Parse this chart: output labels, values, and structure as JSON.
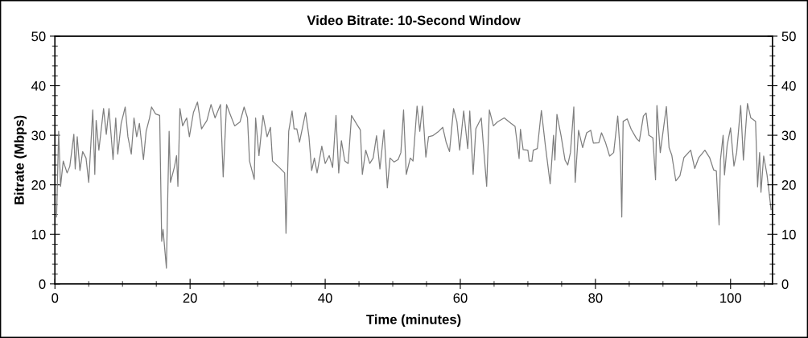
{
  "chart_data": {
    "type": "line",
    "title": "Video Bitrate: 10-Second Window",
    "xlabel": "Time (minutes)",
    "ylabel": "Bitrate (Mbps)",
    "xlim": [
      0,
      106.2
    ],
    "xticks": [
      0,
      20,
      40,
      60,
      80,
      100
    ],
    "ylim": [
      0,
      50
    ],
    "yticks": [
      0,
      10,
      20,
      30,
      40,
      50
    ],
    "y2lim": [
      0,
      50
    ],
    "y2ticks": [
      0,
      10,
      20,
      30,
      40,
      50
    ],
    "grid": false,
    "marker": "none",
    "line_style": "solid",
    "series": [
      {
        "color": "#7f7f7f",
        "x": [
          0.24,
          0.55,
          0.83,
          1.23,
          1.8,
          2.2,
          2.8,
          3.0,
          3.3,
          3.7,
          4.1,
          4.6,
          5.0,
          5.6,
          5.9,
          6.1,
          6.5,
          7.2,
          7.6,
          8.0,
          8.6,
          9.0,
          9.3,
          9.8,
          10.4,
          10.8,
          11.3,
          11.7,
          12.1,
          12.5,
          13.1,
          13.5,
          14.0,
          14.3,
          14.9,
          15.5,
          15.8,
          16.0,
          16.5,
          16.7,
          16.9,
          17.1,
          17.7,
          18.0,
          18.2,
          18.5,
          18.9,
          19.5,
          19.9,
          20.5,
          21.1,
          21.7,
          22.5,
          23.1,
          23.7,
          24.5,
          24.9,
          25.4,
          26.0,
          26.6,
          27.4,
          28.0,
          28.5,
          28.8,
          29.5,
          29.7,
          30.2,
          30.8,
          31.4,
          31.9,
          32.2,
          33.2,
          34.0,
          34.2,
          34.6,
          35.1,
          35.4,
          35.8,
          36.2,
          37.1,
          37.6,
          38.0,
          38.4,
          38.8,
          39.5,
          40.0,
          40.6,
          41.1,
          41.6,
          42.0,
          42.4,
          42.9,
          43.4,
          43.9,
          44.6,
          45.2,
          45.5,
          46.0,
          46.6,
          47.1,
          47.6,
          48.1,
          48.7,
          49.2,
          49.6,
          50.2,
          50.8,
          51.2,
          51.6,
          52.0,
          52.6,
          53.0,
          53.6,
          54.0,
          54.4,
          54.9,
          55.3,
          55.9,
          56.8,
          57.4,
          57.9,
          58.4,
          59.0,
          59.5,
          59.9,
          60.5,
          61.1,
          61.4,
          61.9,
          62.3,
          63.1,
          63.5,
          63.9,
          64.3,
          64.9,
          65.5,
          66.5,
          67.5,
          68.1,
          68.7,
          68.9,
          69.3,
          70.0,
          70.2,
          70.6,
          70.8,
          71.4,
          72.0,
          72.6,
          73.3,
          73.8,
          74.0,
          74.3,
          74.9,
          75.5,
          75.9,
          76.3,
          76.8,
          77.0,
          77.5,
          78.1,
          78.7,
          79.3,
          79.7,
          80.5,
          80.9,
          81.5,
          82.1,
          82.7,
          83.3,
          83.7,
          83.9,
          84.1,
          84.7,
          85.3,
          86.1,
          86.5,
          87.1,
          87.5,
          87.9,
          88.5,
          88.9,
          89.1,
          89.6,
          90.5,
          90.9,
          91.3,
          91.9,
          92.5,
          93.1,
          94.1,
          94.7,
          95.3,
          96.2,
          96.9,
          97.5,
          97.9,
          98.3,
          98.5,
          98.9,
          99.1,
          99.5,
          100.0,
          100.5,
          100.9,
          101.5,
          101.9,
          102.5,
          103.0,
          103.7,
          104.0,
          104.3,
          104.5,
          104.9,
          105.4,
          106.0
        ],
        "values": [
          13.5,
          30.8,
          19.7,
          24.8,
          22.4,
          23.7,
          30.2,
          23.2,
          29.7,
          22.9,
          26.7,
          25.4,
          20.5,
          35.1,
          22.1,
          33,
          27,
          35.4,
          30.2,
          35.4,
          25.1,
          33.5,
          26.2,
          32.4,
          35.7,
          29.7,
          26.2,
          33.5,
          29.7,
          32.4,
          25.1,
          30.8,
          33.5,
          35.7,
          34.3,
          34,
          8.6,
          11,
          3.2,
          17.8,
          30.8,
          20.5,
          23.7,
          25.9,
          19.7,
          35.4,
          31.9,
          33.5,
          29.7,
          34.6,
          36.7,
          31.3,
          33,
          36.2,
          33.5,
          36.2,
          21.6,
          36.2,
          34,
          31.9,
          32.7,
          35.7,
          33.5,
          24.8,
          21.1,
          33.5,
          25.9,
          34,
          29.7,
          31.6,
          24.8,
          23.5,
          22.4,
          10.2,
          30.8,
          34.9,
          31.3,
          31.3,
          28.6,
          34.6,
          29.7,
          22.9,
          25.4,
          22.4,
          27.8,
          24.3,
          25.9,
          23.5,
          34,
          22.4,
          28.9,
          24.8,
          24.3,
          34,
          32.4,
          31.1,
          22.1,
          27,
          24.3,
          25.4,
          29.9,
          23.2,
          31.1,
          19.4,
          25.4,
          24.6,
          25.1,
          26.5,
          35.1,
          22.1,
          25.4,
          24.8,
          35.9,
          30.8,
          35.9,
          25.6,
          29.7,
          29.9,
          30.8,
          31.6,
          28.6,
          26.7,
          35.4,
          32.7,
          27,
          34.9,
          27.3,
          34.9,
          22.1,
          31.3,
          33.5,
          26.5,
          19.7,
          35.1,
          31.9,
          32.7,
          33.5,
          32.4,
          31.8,
          25.3,
          31.2,
          27.1,
          27,
          24.8,
          24.8,
          27,
          27.3,
          35,
          27.8,
          20.2,
          30,
          25,
          34.2,
          30,
          25,
          24,
          26.5,
          35.7,
          20.5,
          31,
          27.5,
          30.5,
          31,
          28.4,
          28.5,
          30.5,
          28.5,
          25.8,
          26.5,
          33.9,
          25.8,
          13.5,
          32.8,
          33.3,
          31.2,
          29.3,
          28.8,
          33.9,
          34.5,
          30,
          29.5,
          21,
          36,
          26.5,
          35.8,
          27.5,
          26,
          20.8,
          21.8,
          25.5,
          27,
          23.3,
          25.5,
          27,
          25.5,
          23,
          22.8,
          11.9,
          25,
          30,
          22,
          28,
          31.5,
          23.8,
          26.5,
          36,
          25,
          36.4,
          33.5,
          32.8,
          19.6,
          26.5,
          18.5,
          25.8,
          22,
          15
        ]
      }
    ]
  }
}
